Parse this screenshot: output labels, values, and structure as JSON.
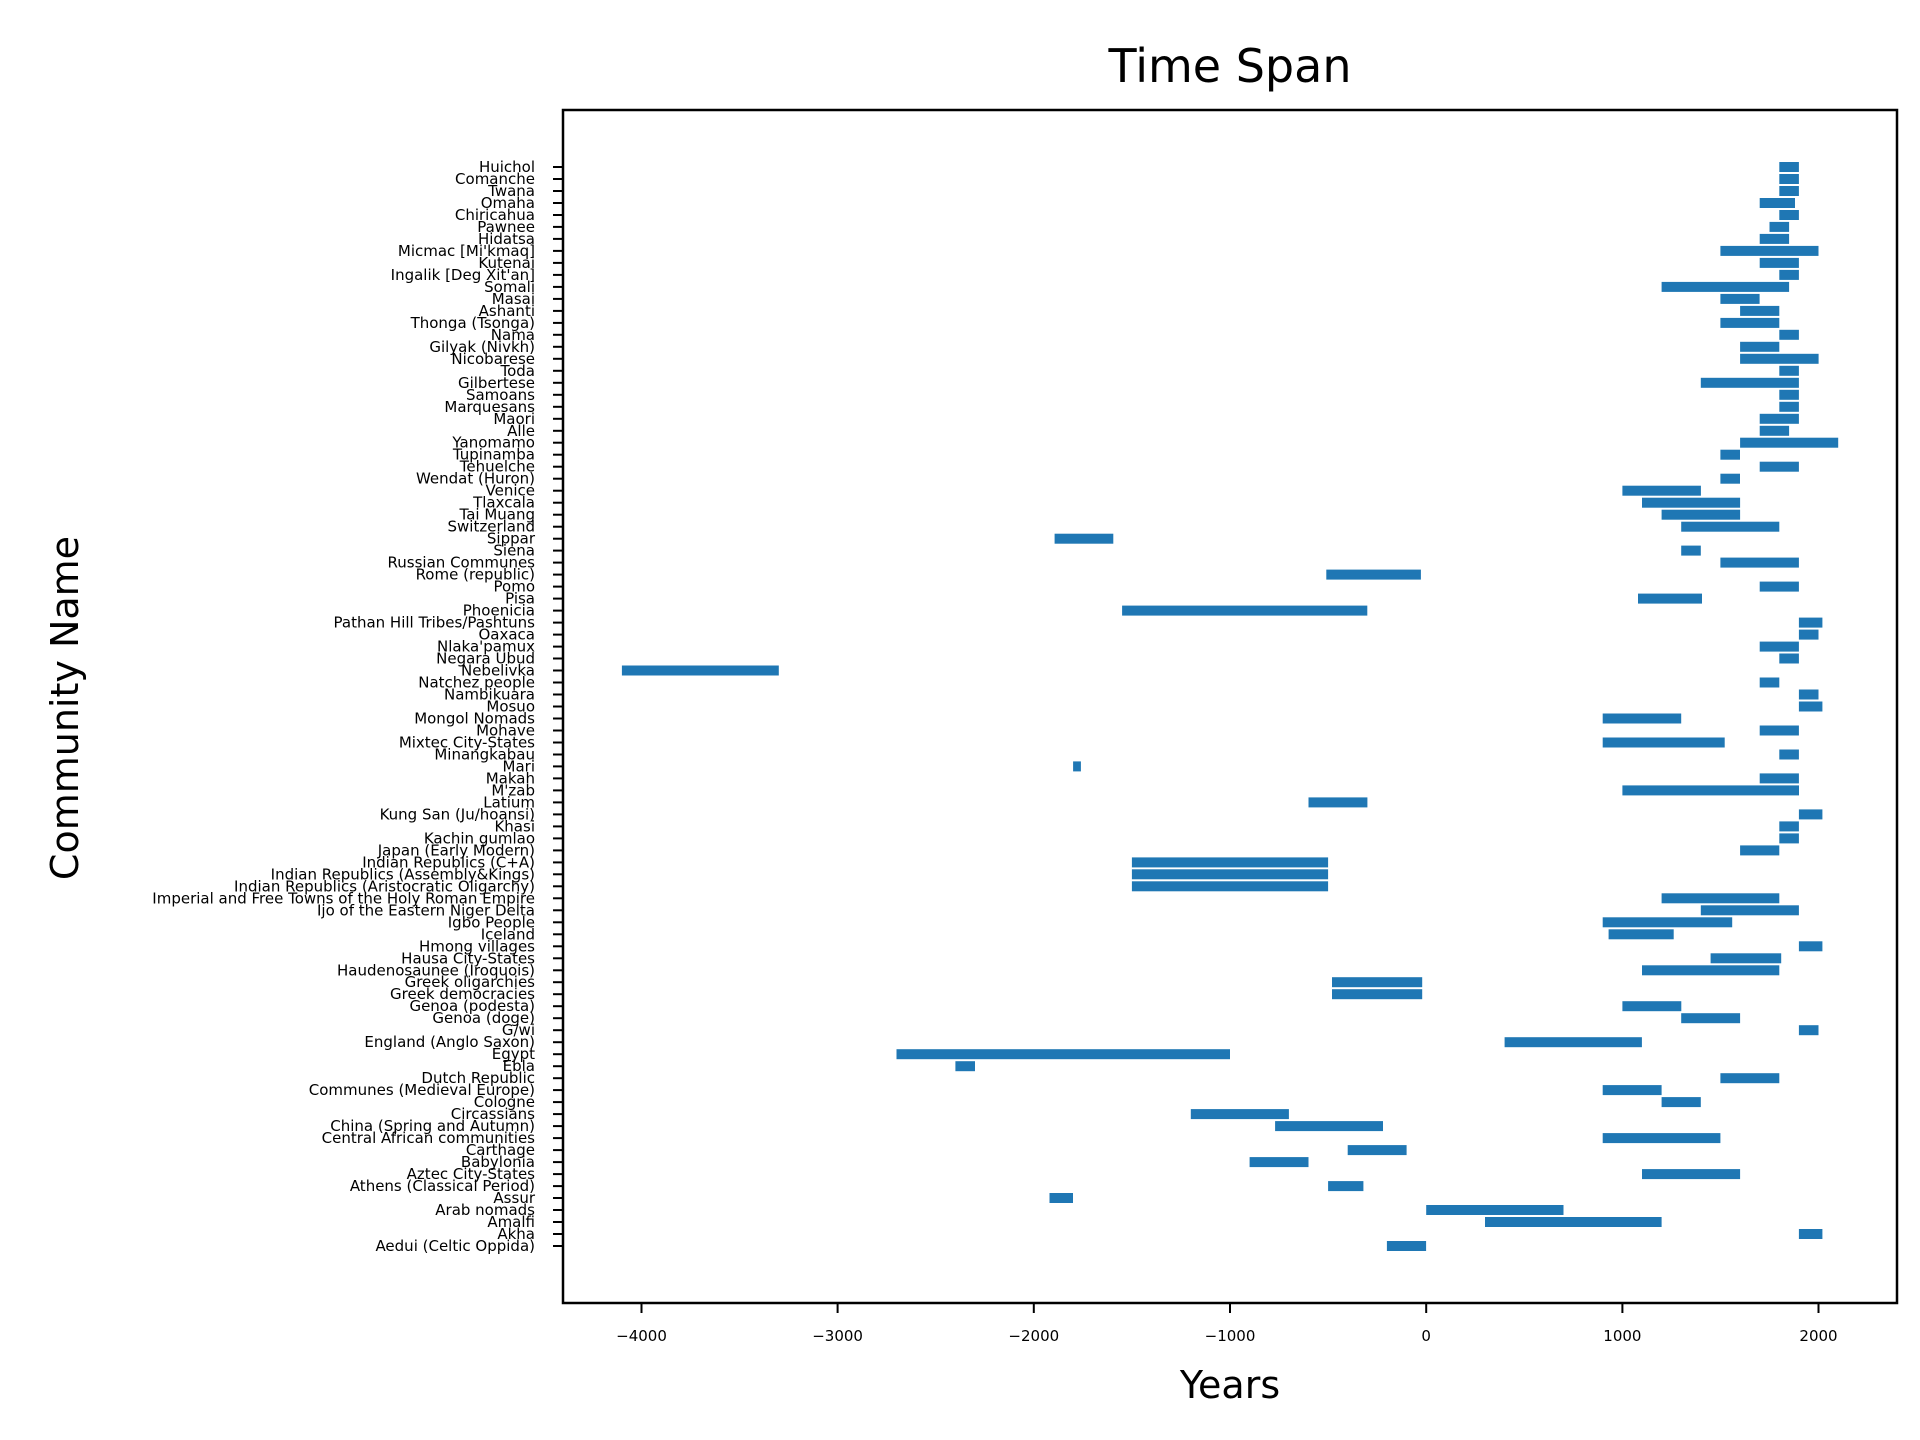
{
  "chart_data": {
    "type": "bar",
    "orientation": "horizontal",
    "title": "Time Span",
    "xlabel": "Years",
    "ylabel": "Community Name",
    "xlim": [
      -4400,
      2400
    ],
    "xticks": [
      -4000,
      -3000,
      -2000,
      -1000,
      0,
      1000,
      2000
    ],
    "xtick_labels": [
      "−4000",
      "−3000",
      "−2000",
      "−1000",
      "0",
      "1000",
      "2000"
    ],
    "grid": false,
    "bar_color": "#1f77b4",
    "bars": [
      {
        "name": "Aedui (Celtic Oppida)",
        "start": -200,
        "end": 0
      },
      {
        "name": "Akha",
        "start": 1900,
        "end": 2020
      },
      {
        "name": "Amalfi",
        "start": 300,
        "end": 1200
      },
      {
        "name": "Arab nomads",
        "start": 0,
        "end": 700
      },
      {
        "name": "Assur",
        "start": -1920,
        "end": -1800
      },
      {
        "name": "Athens (Classical Period)",
        "start": -500,
        "end": -320
      },
      {
        "name": "Aztec City-States",
        "start": 1100,
        "end": 1600
      },
      {
        "name": "Babylonia",
        "start": -900,
        "end": -600
      },
      {
        "name": "Carthage",
        "start": -400,
        "end": -100
      },
      {
        "name": "Central African communities",
        "start": 900,
        "end": 1500
      },
      {
        "name": "China (Spring and Autumn)",
        "start": -770,
        "end": -220
      },
      {
        "name": "Circassians",
        "start": -1200,
        "end": -700
      },
      {
        "name": "Cologne",
        "start": 1200,
        "end": 1400
      },
      {
        "name": "Communes (Medieval Europe)",
        "start": 900,
        "end": 1200
      },
      {
        "name": "Dutch Republic",
        "start": 1500,
        "end": 1800
      },
      {
        "name": "Ebla",
        "start": -2400,
        "end": -2300
      },
      {
        "name": "Egypt",
        "start": -2700,
        "end": -1000
      },
      {
        "name": "England (Anglo Saxon)",
        "start": 400,
        "end": 1100
      },
      {
        "name": "G/wi",
        "start": 1900,
        "end": 2000
      },
      {
        "name": "Genoa (doge)",
        "start": 1300,
        "end": 1600
      },
      {
        "name": "Genoa (podesta)",
        "start": 1000,
        "end": 1300
      },
      {
        "name": "Greek democracies",
        "start": -480,
        "end": -20
      },
      {
        "name": "Greek oligarchies",
        "start": -480,
        "end": -20
      },
      {
        "name": "Haudenosaunee (Iroquois)",
        "start": 1100,
        "end": 1800
      },
      {
        "name": "Hausa City-States",
        "start": 1450,
        "end": 1810
      },
      {
        "name": "Hmong villages",
        "start": 1900,
        "end": 2020
      },
      {
        "name": "Iceland",
        "start": 930,
        "end": 1262
      },
      {
        "name": "Igbo People",
        "start": 900,
        "end": 1560
      },
      {
        "name": "Ijo of the Eastern Niger Delta",
        "start": 1400,
        "end": 1900
      },
      {
        "name": "Imperial and Free Towns of the Holy Roman Empire",
        "start": 1200,
        "end": 1800
      },
      {
        "name": "Indian Republics (Aristocratic Oligarchy)",
        "start": -1500,
        "end": -500
      },
      {
        "name": "Indian Republics (Assembly&Kings)",
        "start": -1500,
        "end": -500
      },
      {
        "name": "Indian Republics (C+A)",
        "start": -1500,
        "end": -500
      },
      {
        "name": "Japan (Early Modern)",
        "start": 1600,
        "end": 1800
      },
      {
        "name": "Kachin gumlao",
        "start": 1800,
        "end": 1900
      },
      {
        "name": "Khasi",
        "start": 1800,
        "end": 1900
      },
      {
        "name": "Kung San (Ju/hoansi)",
        "start": 1900,
        "end": 2020
      },
      {
        "name": "Latium",
        "start": -600,
        "end": -300
      },
      {
        "name": "M'zab",
        "start": 1000,
        "end": 1900
      },
      {
        "name": "Makah",
        "start": 1700,
        "end": 1900
      },
      {
        "name": "Mari",
        "start": -1800,
        "end": -1760
      },
      {
        "name": "Minangkabau",
        "start": 1800,
        "end": 1900
      },
      {
        "name": "Mixtec City-States",
        "start": 900,
        "end": 1522
      },
      {
        "name": "Mohave",
        "start": 1700,
        "end": 1900
      },
      {
        "name": "Mongol Nomads",
        "start": 900,
        "end": 1300
      },
      {
        "name": "Mosuo",
        "start": 1900,
        "end": 2020
      },
      {
        "name": "Nambikuara",
        "start": 1900,
        "end": 2000
      },
      {
        "name": "Natchez people",
        "start": 1700,
        "end": 1800
      },
      {
        "name": "Nebelivka",
        "start": -4100,
        "end": -3300
      },
      {
        "name": "Negara Ubud",
        "start": 1800,
        "end": 1900
      },
      {
        "name": "Nlaka'pamux",
        "start": 1700,
        "end": 1900
      },
      {
        "name": "Oaxaca",
        "start": 1900,
        "end": 2000
      },
      {
        "name": "Pathan Hill Tribes/Pashtuns",
        "start": 1900,
        "end": 2020
      },
      {
        "name": "Phoenicia",
        "start": -1550,
        "end": -300
      },
      {
        "name": "Pisa",
        "start": 1080,
        "end": 1406
      },
      {
        "name": "Pomo",
        "start": 1700,
        "end": 1900
      },
      {
        "name": "Rome (republic)",
        "start": -509,
        "end": -27
      },
      {
        "name": "Russian Communes",
        "start": 1500,
        "end": 1900
      },
      {
        "name": "Siena",
        "start": 1300,
        "end": 1400
      },
      {
        "name": "Sippar",
        "start": -1894,
        "end": -1595
      },
      {
        "name": "Switzerland",
        "start": 1300,
        "end": 1800
      },
      {
        "name": "Tai Muang",
        "start": 1200,
        "end": 1600
      },
      {
        "name": "Tlaxcala",
        "start": 1100,
        "end": 1600
      },
      {
        "name": "Venice",
        "start": 1000,
        "end": 1400
      },
      {
        "name": "Wendat (Huron)",
        "start": 1500,
        "end": 1600
      },
      {
        "name": "Tehuelche",
        "start": 1700,
        "end": 1900
      },
      {
        "name": "Tupinamba",
        "start": 1500,
        "end": 1600
      },
      {
        "name": "Yanomamo",
        "start": 1600,
        "end": 2100
      },
      {
        "name": "Alle",
        "start": 1700,
        "end": 1850
      },
      {
        "name": "Maori",
        "start": 1700,
        "end": 1900
      },
      {
        "name": "Marquesans",
        "start": 1800,
        "end": 1900
      },
      {
        "name": "Samoans",
        "start": 1800,
        "end": 1900
      },
      {
        "name": "Gilbertese",
        "start": 1400,
        "end": 1900
      },
      {
        "name": "Toda",
        "start": 1800,
        "end": 1900
      },
      {
        "name": "Nicobarese",
        "start": 1600,
        "end": 2000
      },
      {
        "name": "Gilyak (Nivkh)",
        "start": 1600,
        "end": 1800
      },
      {
        "name": "Nama",
        "start": 1800,
        "end": 1900
      },
      {
        "name": "Thonga (Tsonga)",
        "start": 1500,
        "end": 1800
      },
      {
        "name": "Ashanti",
        "start": 1600,
        "end": 1800
      },
      {
        "name": "Masai",
        "start": 1500,
        "end": 1700
      },
      {
        "name": "Somali",
        "start": 1200,
        "end": 1850
      },
      {
        "name": "Ingalik [Deg Xit'an]",
        "start": 1800,
        "end": 1900
      },
      {
        "name": "Kutenai",
        "start": 1700,
        "end": 1900
      },
      {
        "name": "Micmac [Mi'kmaq]",
        "start": 1500,
        "end": 2000
      },
      {
        "name": "Hidatsa",
        "start": 1700,
        "end": 1850
      },
      {
        "name": "Pawnee",
        "start": 1750,
        "end": 1850
      },
      {
        "name": "Chiricahua",
        "start": 1800,
        "end": 1900
      },
      {
        "name": "Omaha",
        "start": 1700,
        "end": 1880
      },
      {
        "name": "Twana",
        "start": 1800,
        "end": 1900
      },
      {
        "name": "Comanche",
        "start": 1800,
        "end": 1900
      },
      {
        "name": "Huichol",
        "start": 1800,
        "end": 1900
      }
    ]
  }
}
